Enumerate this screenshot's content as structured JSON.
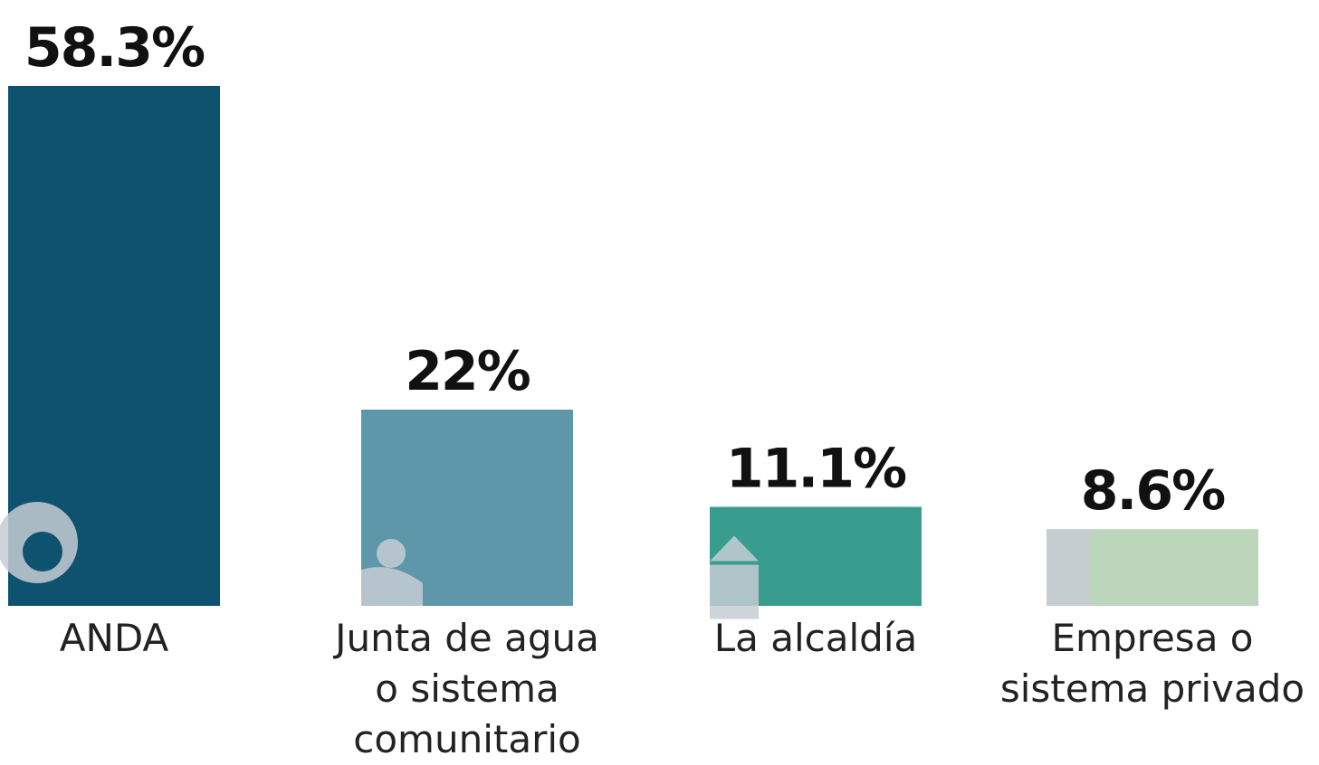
{
  "chart_data": {
    "type": "bar",
    "categories": [
      "ANDA",
      "Junta de agua\no sistema\ncomunitario",
      "La alcaldía",
      "Empresa o\nsistema privado"
    ],
    "values": [
      58.3,
      22,
      11.1,
      8.6
    ],
    "value_labels": [
      "58.3%",
      "22%",
      "11.1%",
      "8.6%"
    ],
    "colors": [
      "#0f5270",
      "#5e96aa",
      "#389c8e",
      "#bcd6bc"
    ]
  }
}
